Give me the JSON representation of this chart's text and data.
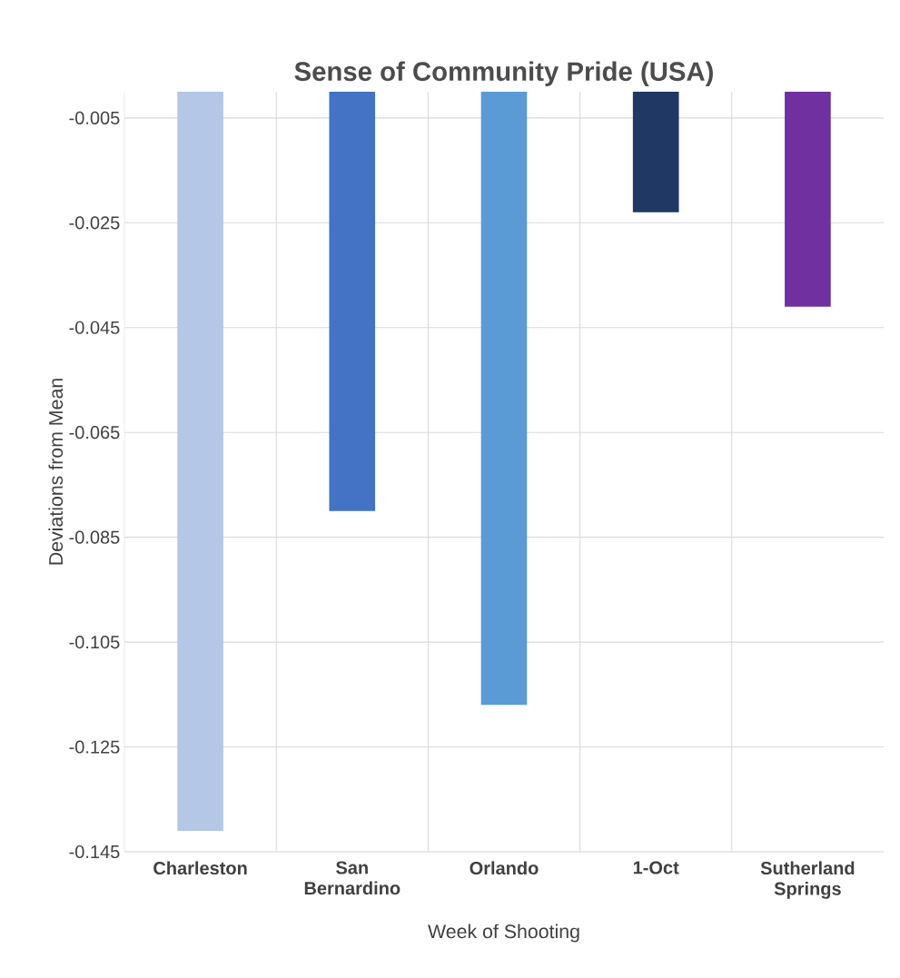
{
  "chart_data": {
    "type": "bar",
    "title": "Sense of Community Pride (USA)",
    "xlabel": "Week of Shooting",
    "ylabel": "Deviations from Mean",
    "categories": [
      "Charleston",
      "San Bernardino",
      "Orlando",
      "1-Oct",
      "Sutherland Springs"
    ],
    "values": [
      -0.141,
      -0.08,
      -0.117,
      -0.023,
      -0.041
    ],
    "colors": [
      "#b4c7e7",
      "#4472c4",
      "#5b9bd5",
      "#203864",
      "#7030a0"
    ],
    "ylim": [
      -0.145,
      0
    ],
    "yticks": [
      -0.145,
      -0.125,
      -0.105,
      -0.085,
      -0.065,
      -0.045,
      -0.025,
      -0.005
    ],
    "grid": true
  }
}
